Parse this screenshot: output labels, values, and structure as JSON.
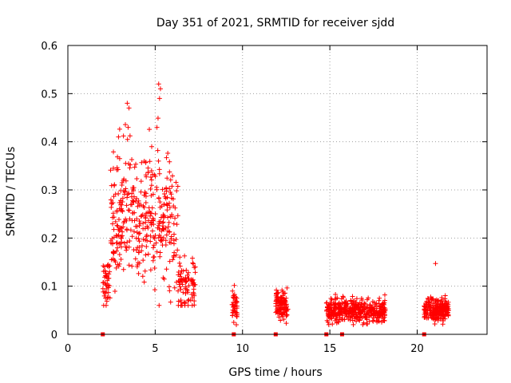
{
  "chart_data": {
    "type": "scatter",
    "title": "Day 351 of 2021, SRMTID for receiver sjdd",
    "xlabel": "GPS time / hours",
    "ylabel": "SRMTID / TECUs",
    "xlim": [
      0,
      24
    ],
    "ylim": [
      0,
      0.6
    ],
    "xticks": [
      0,
      5,
      10,
      15,
      20
    ],
    "yticks": [
      0,
      0.1,
      0.2,
      0.3,
      0.4,
      0.5,
      0.6
    ],
    "xtick_labels": [
      "0",
      "5",
      "10",
      "15",
      "20"
    ],
    "ytick_labels": [
      "0",
      "0.1",
      "0.2",
      "0.3",
      "0.4",
      "0.5",
      "0.6"
    ],
    "grid": true,
    "marker": "+",
    "color": "#ff0000",
    "clusters": [
      {
        "x_start": 2.0,
        "x_end": 7.3,
        "y_min": 0.06,
        "y_max": 0.52,
        "n": 520,
        "y_center": 0.2,
        "y_spread": 0.1
      },
      {
        "x_start": 9.4,
        "x_end": 9.7,
        "y_min": 0.0,
        "y_max": 0.11,
        "n": 40,
        "y_center": 0.06,
        "y_spread": 0.03
      },
      {
        "x_start": 11.9,
        "x_end": 12.6,
        "y_min": 0.02,
        "y_max": 0.13,
        "n": 110,
        "y_center": 0.06,
        "y_spread": 0.025
      },
      {
        "x_start": 14.8,
        "x_end": 18.2,
        "y_min": 0.02,
        "y_max": 0.12,
        "n": 420,
        "y_center": 0.05,
        "y_spread": 0.02
      },
      {
        "x_start": 20.4,
        "x_end": 21.8,
        "y_min": 0.02,
        "y_max": 0.15,
        "n": 220,
        "y_center": 0.05,
        "y_spread": 0.02
      }
    ],
    "peaks": [
      {
        "x": 3.4,
        "y": 0.48
      },
      {
        "x": 3.5,
        "y": 0.47
      },
      {
        "x": 3.45,
        "y": 0.43
      },
      {
        "x": 5.2,
        "y": 0.52
      },
      {
        "x": 5.3,
        "y": 0.51
      },
      {
        "x": 5.25,
        "y": 0.49
      },
      {
        "x": 5.1,
        "y": 0.43
      },
      {
        "x": 2.9,
        "y": 0.41
      },
      {
        "x": 4.8,
        "y": 0.39
      },
      {
        "x": 21.05,
        "y": 0.147
      }
    ],
    "gap_markers": [
      2.0,
      9.5,
      11.9,
      14.8,
      15.7,
      20.4
    ]
  }
}
